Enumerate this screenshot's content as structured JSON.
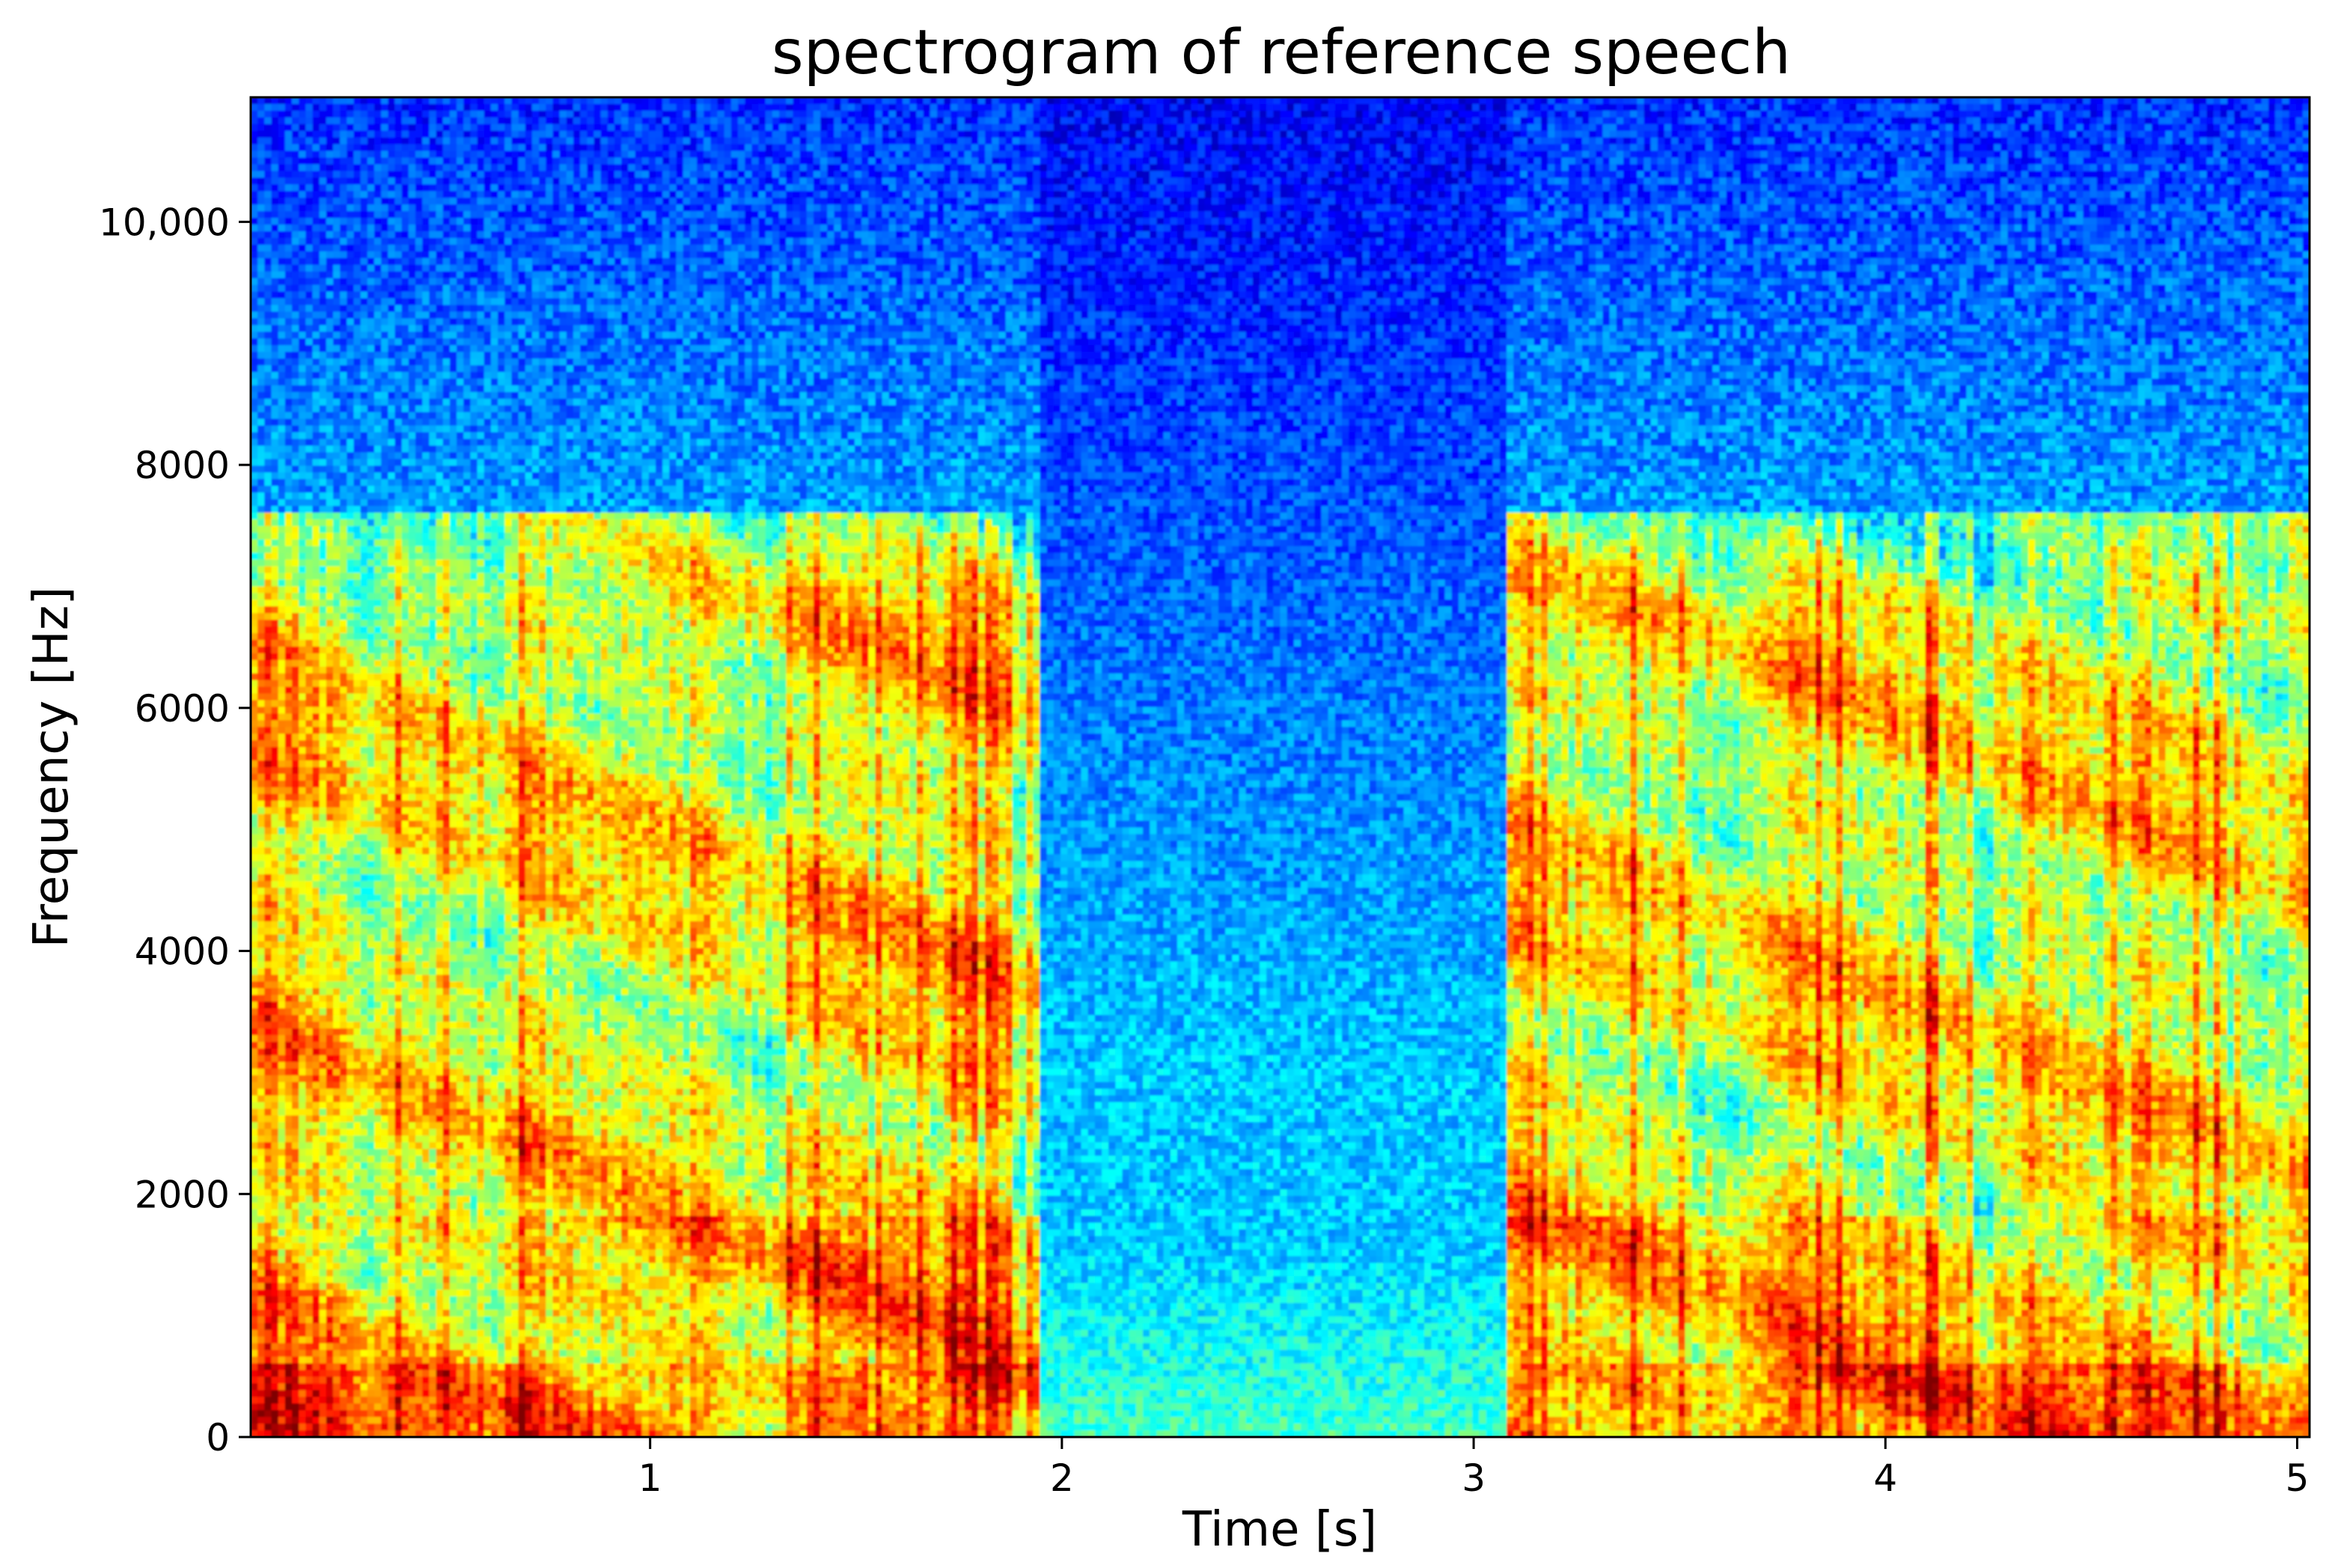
{
  "chart_data": {
    "type": "heatmap",
    "title": "spectrogram of reference speech",
    "xlabel": "Time [s]",
    "ylabel": "Frequency [Hz]",
    "xlim": [
      0.03,
      5.03
    ],
    "ylim": [
      0,
      11025
    ],
    "xticks": [
      {
        "value": 1,
        "label": "1"
      },
      {
        "value": 2,
        "label": "2"
      },
      {
        "value": 3,
        "label": "3"
      },
      {
        "value": 4,
        "label": "4"
      },
      {
        "value": 5,
        "label": "5"
      }
    ],
    "yticks": [
      {
        "value": 0,
        "label": "0"
      },
      {
        "value": 2000,
        "label": "2000"
      },
      {
        "value": 4000,
        "label": "4000"
      },
      {
        "value": 6000,
        "label": "6000"
      },
      {
        "value": 8000,
        "label": "8000"
      },
      {
        "value": 10000,
        "label": "10,000"
      }
    ],
    "colormap": "jet",
    "speech_segments": [
      [
        0.03,
        1.95
      ],
      [
        3.08,
        5.03
      ]
    ],
    "speech_bandwidth_hz": 7600,
    "grid": false,
    "legend": "none"
  }
}
